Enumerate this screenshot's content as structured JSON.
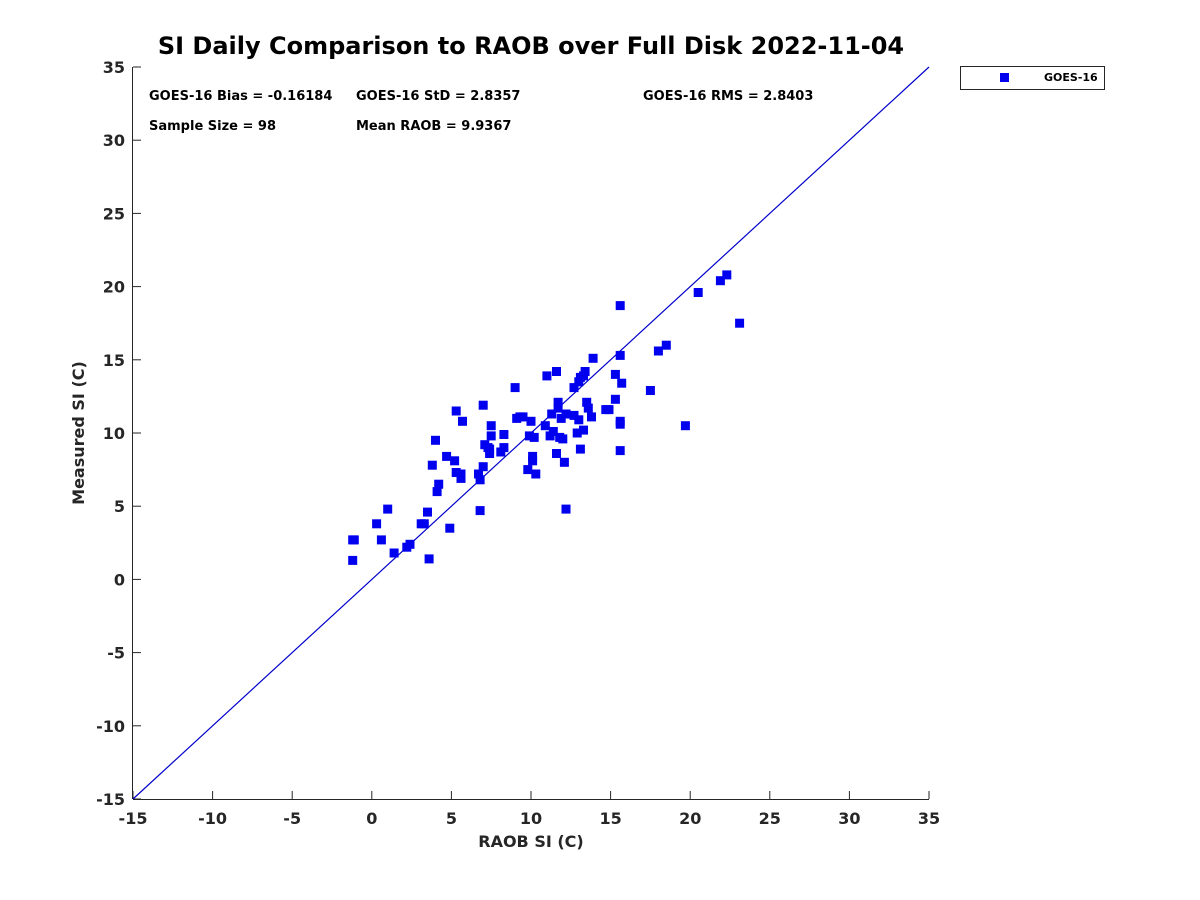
{
  "chart_data": {
    "type": "scatter",
    "title": "SI Daily Comparison to RAOB over Full Disk 2022-11-04",
    "xlabel": "RAOB SI (C)",
    "ylabel": "Measured SI (C)",
    "xlim": [
      -15,
      35
    ],
    "ylim": [
      -15,
      35
    ],
    "xticks": [
      "-15",
      "-10",
      "-5",
      "0",
      "5",
      "10",
      "15",
      "20",
      "25",
      "30",
      "35"
    ],
    "yticks": [
      "-15",
      "-10",
      "-5",
      "0",
      "5",
      "10",
      "15",
      "20",
      "25",
      "30",
      "35"
    ],
    "grid": false,
    "legend_position": "outside-top-right",
    "reference_line": {
      "from": [
        -15,
        -15
      ],
      "to": [
        35,
        35
      ],
      "color": "#0000cc"
    },
    "annotations": [
      "GOES-16 Bias = -0.16184",
      "GOES-16 StD = 2.8357",
      "GOES-16 RMS = 2.8403",
      "Sample Size = 98",
      "Mean RAOB = 9.9367"
    ],
    "series": [
      {
        "name": "GOES-16",
        "color": "#0000ee",
        "marker": "square",
        "points": [
          [
            -1.2,
            2.7
          ],
          [
            -1.1,
            2.7
          ],
          [
            -1.2,
            1.3
          ],
          [
            0.3,
            3.8
          ],
          [
            0.6,
            2.7
          ],
          [
            1.0,
            4.8
          ],
          [
            1.4,
            1.8
          ],
          [
            2.2,
            2.2
          ],
          [
            2.4,
            2.4
          ],
          [
            3.1,
            3.8
          ],
          [
            3.3,
            3.8
          ],
          [
            3.5,
            4.6
          ],
          [
            3.6,
            1.4
          ],
          [
            3.8,
            7.8
          ],
          [
            4.0,
            9.5
          ],
          [
            4.1,
            6.0
          ],
          [
            4.2,
            6.5
          ],
          [
            4.7,
            8.4
          ],
          [
            4.9,
            3.5
          ],
          [
            5.2,
            8.1
          ],
          [
            5.3,
            7.3
          ],
          [
            5.3,
            11.5
          ],
          [
            5.6,
            7.2
          ],
          [
            5.6,
            6.9
          ],
          [
            5.7,
            10.8
          ],
          [
            6.7,
            7.2
          ],
          [
            6.8,
            6.8
          ],
          [
            6.8,
            4.7
          ],
          [
            7.0,
            11.9
          ],
          [
            7.0,
            7.7
          ],
          [
            7.1,
            9.2
          ],
          [
            7.3,
            9.0
          ],
          [
            7.4,
            8.6
          ],
          [
            7.4,
            8.9
          ],
          [
            7.5,
            10.5
          ],
          [
            7.5,
            9.8
          ],
          [
            8.1,
            8.7
          ],
          [
            8.3,
            9.0
          ],
          [
            8.3,
            9.9
          ],
          [
            9.0,
            13.1
          ],
          [
            9.1,
            11.0
          ],
          [
            9.3,
            11.1
          ],
          [
            9.5,
            11.1
          ],
          [
            9.8,
            7.5
          ],
          [
            9.9,
            9.8
          ],
          [
            10.0,
            10.8
          ],
          [
            10.1,
            8.1
          ],
          [
            10.1,
            8.4
          ],
          [
            10.2,
            9.7
          ],
          [
            10.3,
            7.2
          ],
          [
            10.9,
            10.5
          ],
          [
            11.0,
            13.9
          ],
          [
            11.2,
            9.8
          ],
          [
            11.3,
            11.3
          ],
          [
            11.4,
            10.1
          ],
          [
            11.6,
            8.6
          ],
          [
            11.6,
            14.2
          ],
          [
            11.7,
            12.1
          ],
          [
            11.7,
            11.7
          ],
          [
            11.8,
            9.7
          ],
          [
            11.9,
            11.0
          ],
          [
            12.0,
            9.6
          ],
          [
            12.1,
            8.0
          ],
          [
            12.2,
            11.3
          ],
          [
            12.2,
            4.8
          ],
          [
            12.7,
            11.2
          ],
          [
            12.7,
            13.1
          ],
          [
            12.9,
            10.0
          ],
          [
            13.0,
            10.9
          ],
          [
            13.0,
            13.5
          ],
          [
            13.1,
            8.9
          ],
          [
            13.1,
            13.8
          ],
          [
            13.3,
            10.2
          ],
          [
            13.3,
            13.9
          ],
          [
            13.4,
            14.2
          ],
          [
            13.5,
            12.1
          ],
          [
            13.6,
            11.7
          ],
          [
            13.8,
            11.1
          ],
          [
            13.9,
            15.1
          ],
          [
            14.7,
            11.6
          ],
          [
            14.9,
            11.6
          ],
          [
            15.3,
            14.0
          ],
          [
            15.3,
            12.3
          ],
          [
            15.6,
            18.7
          ],
          [
            15.6,
            15.3
          ],
          [
            15.6,
            10.8
          ],
          [
            15.6,
            10.6
          ],
          [
            15.6,
            8.8
          ],
          [
            15.7,
            13.4
          ],
          [
            17.5,
            12.9
          ],
          [
            18.0,
            15.6
          ],
          [
            18.5,
            16.0
          ],
          [
            19.7,
            10.5
          ],
          [
            20.5,
            19.6
          ],
          [
            21.9,
            20.4
          ],
          [
            22.3,
            20.8
          ],
          [
            23.1,
            17.5
          ]
        ]
      }
    ]
  }
}
